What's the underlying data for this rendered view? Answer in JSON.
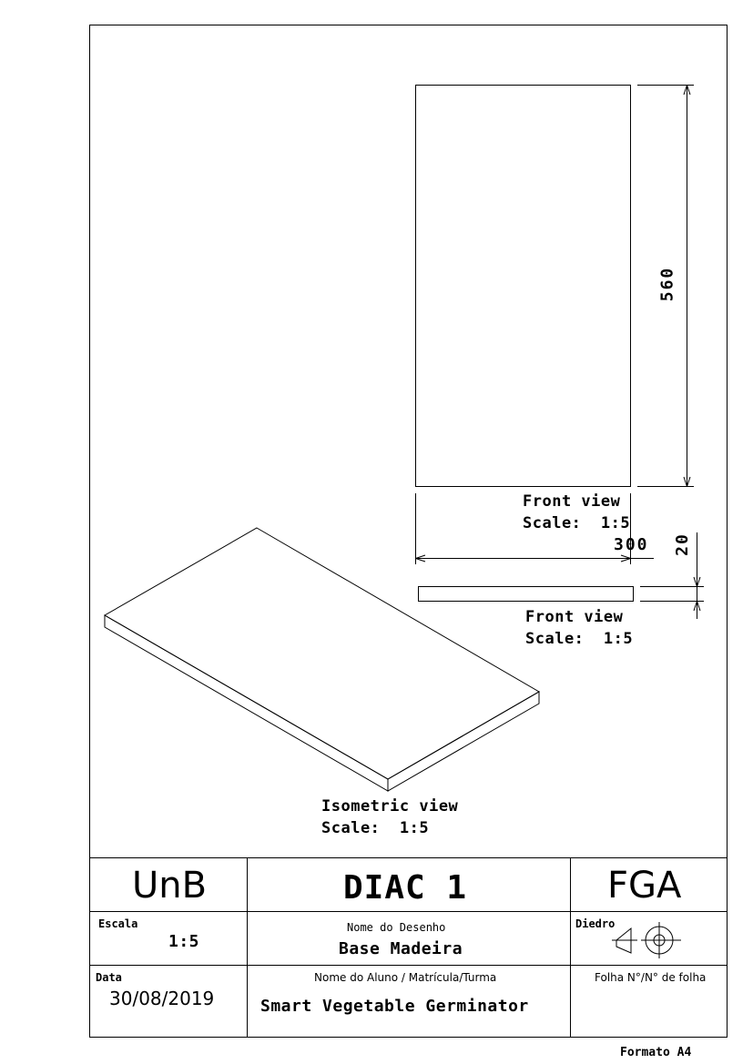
{
  "front_view_top": {
    "title": "Front view",
    "scale": "Scale:  1:5",
    "dim_height": "560",
    "dim_width": "300"
  },
  "front_view_bottom": {
    "title": "Front view",
    "scale": "Scale:  1:5",
    "dim_thickness": "20"
  },
  "isometric_view": {
    "title": "Isometric view",
    "scale": "Scale:  1:5"
  },
  "title_block": {
    "institution": "UnB",
    "course": "DIAC 1",
    "campus": "FGA",
    "scale_label": "Escala",
    "scale_value": "1:5",
    "drawing_name_label": "Nome do Desenho",
    "drawing_name": "Base Madeira",
    "projection_label": "Diedro",
    "date_label": "Data",
    "date_value": "30/08/2019",
    "student_label": "Nome do Aluno / Matrícula/Turma",
    "student_value": "Smart Vegetable Germinator",
    "sheet_label": "Folha N°/N° de folha"
  },
  "footer": {
    "format": "Formato A4"
  }
}
